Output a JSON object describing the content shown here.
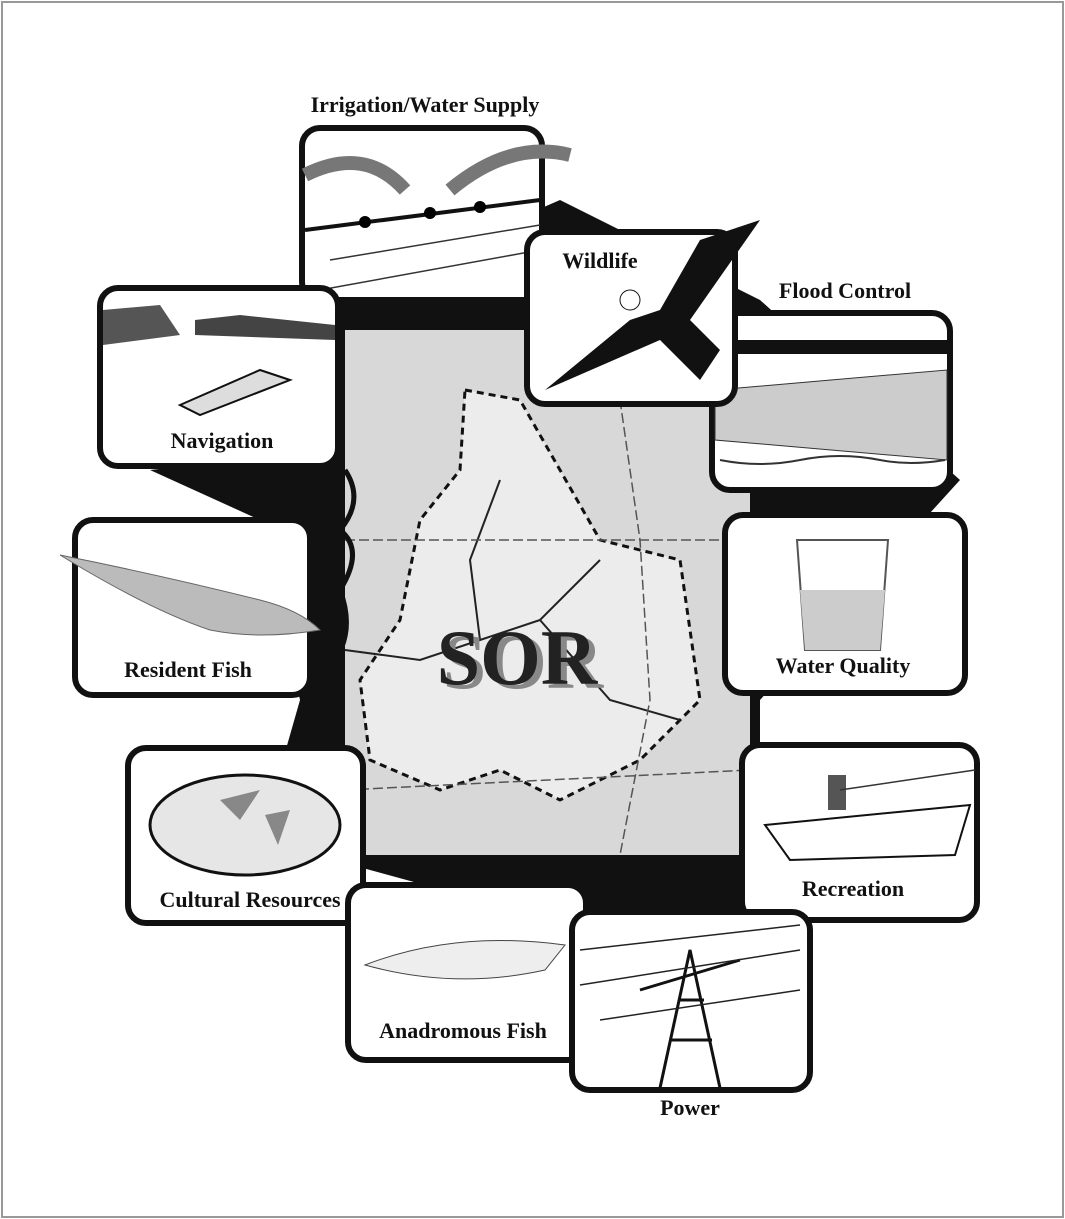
{
  "diagram": {
    "center_label": "SOR",
    "panels": [
      {
        "label": "Irrigation/Water Supply"
      },
      {
        "label": "Wildlife"
      },
      {
        "label": "Flood Control"
      },
      {
        "label": "Navigation"
      },
      {
        "label": "Resident Fish"
      },
      {
        "label": "Water Quality"
      },
      {
        "label": "Cultural Resources"
      },
      {
        "label": "Recreation"
      },
      {
        "label": "Anadromous Fish"
      },
      {
        "label": "Power"
      }
    ]
  }
}
